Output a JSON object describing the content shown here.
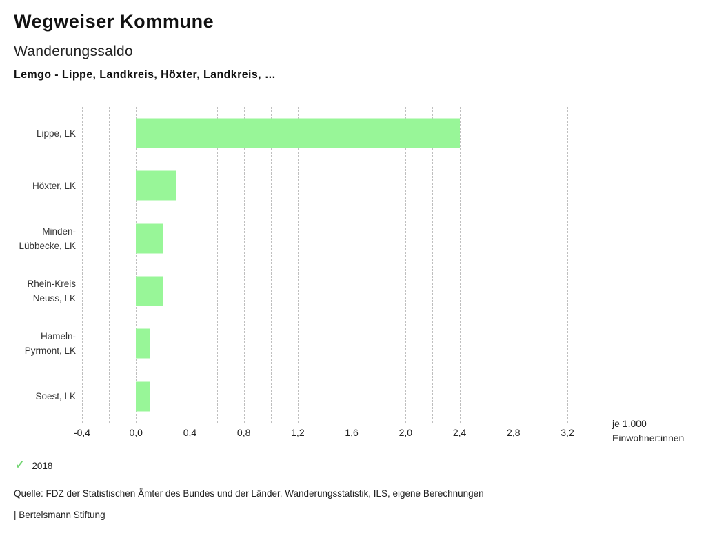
{
  "header": {
    "title": "Wegweiser Kommune",
    "subtitle": "Wanderungssaldo",
    "comparison": "Lemgo - Lippe, Landkreis, Höxter, Landkreis, …"
  },
  "chart_data": {
    "type": "bar",
    "orientation": "horizontal",
    "title": "Wanderungssaldo",
    "categories": [
      "Lippe, LK",
      "Höxter, LK",
      "Minden-Lübbecke, LK",
      "Rhein-Kreis Neuss, LK",
      "Hameln-Pyrmont, LK",
      "Soest, LK"
    ],
    "category_lines": [
      [
        "Lippe, LK"
      ],
      [
        "Höxter, LK"
      ],
      [
        "Minden-",
        "Lübbecke, LK"
      ],
      [
        "Rhein-Kreis",
        "Neuss, LK"
      ],
      [
        "Hameln-",
        "Pyrmont, LK"
      ],
      [
        "Soest, LK"
      ]
    ],
    "series": [
      {
        "name": "2018",
        "values": [
          2.4,
          0.3,
          0.2,
          0.2,
          0.1,
          0.1
        ]
      }
    ],
    "xlim": [
      -0.4,
      3.2
    ],
    "grid_step": 0.2,
    "tick_step": 0.4,
    "tick_labels": [
      "-0,4",
      "0,0",
      "0,4",
      "0,8",
      "1,2",
      "1,6",
      "2,0",
      "2,4",
      "2,8",
      "3,2"
    ],
    "unit_label": [
      "je 1.000",
      "Einwohner:innen"
    ],
    "grid": true,
    "legend_position": "bottom-left",
    "colors": {
      "bar": "#98f698",
      "gridline": "#bfbfbf",
      "legend_check": "#72d572"
    }
  },
  "legend": {
    "check_icon": "✓",
    "label": "2018"
  },
  "footer": {
    "source": "Quelle: FDZ der Statistischen Ämter des Bundes und der Länder, Wanderungsstatistik, ILS, eigene Berechnungen",
    "branding": "| Bertelsmann Stiftung"
  }
}
